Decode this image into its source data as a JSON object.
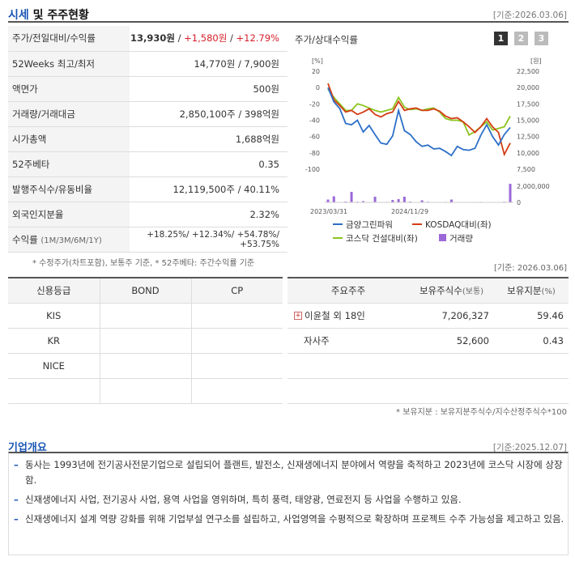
{
  "section1": {
    "title_a": "시세",
    "title_b": " 및 주주현황",
    "date": "[기준:2026.03.06]"
  },
  "quote": {
    "rows": [
      {
        "label": "주가/전일대비/수익률",
        "price": "13,930원",
        "sep1": " / ",
        "change": "+1,580원",
        "sep2": " / ",
        "rate": "+12.79%"
      },
      {
        "label": "52Weeks 최고/최저",
        "value": "14,770원 / 7,900원"
      },
      {
        "label": "액면가",
        "value": "500원"
      },
      {
        "label": "거래량/거래대금",
        "value": "2,850,100주 / 398억원"
      },
      {
        "label": "시가총액",
        "value": "1,688억원"
      },
      {
        "label": "52주베타",
        "value": "0.35"
      },
      {
        "label": "발행주식수/유동비율",
        "value": "12,119,500주 / 40.11%"
      },
      {
        "label": "외국인지분율",
        "value": "2.32%"
      },
      {
        "label": "수익률",
        "sublabel": "(1M/3M/6M/1Y)",
        "value": "+18.25%/ +12.34%/ +54.78%/ +53.75%"
      }
    ],
    "note": "* 수정주가(차트포함), 보통주 기준, * 52주베타: 주간수익률 기준"
  },
  "chart": {
    "title": "주가/상대수익률",
    "pages": [
      "1",
      "2",
      "3"
    ],
    "left_unit": "[%]",
    "right_unit": "[원]",
    "left_ticks": [
      "20",
      "0",
      "-20",
      "-40",
      "-60",
      "-80",
      "-100"
    ],
    "right_ticks": [
      "22,500",
      "20,000",
      "17,500",
      "15,000",
      "12,500",
      "10,000",
      "7,500"
    ],
    "vol_ticks": [
      "2,000,000",
      "0"
    ],
    "x_labels": [
      "2023/03/31",
      "2024/11/29"
    ],
    "legend": [
      {
        "label": "금양그린파워",
        "color": "#2c6fc7",
        "kind": "line"
      },
      {
        "label": "KOSDAQ대비(좌)",
        "color": "#d43c14",
        "kind": "line"
      },
      {
        "label": "코스닥 건설대비(좌)",
        "color": "#8cc41e",
        "kind": "line"
      },
      {
        "label": "거래량",
        "color": "#9a68d8",
        "kind": "bar"
      }
    ]
  },
  "chart_data": {
    "type": "line",
    "title": "주가/상대수익률",
    "xlabel": "",
    "x_ticks": [
      "2023/03/31",
      "2024/11/29"
    ],
    "ylim_left": [
      -100,
      20
    ],
    "ylim_right": [
      7500,
      22500
    ],
    "series": [
      {
        "name": "금양그린파워",
        "axis": "right",
        "values": [
          20000,
          17800,
          16800,
          14500,
          14300,
          15000,
          13200,
          14200,
          12800,
          11500,
          11300,
          12600,
          16500,
          13400,
          12800,
          11700,
          11000,
          11200,
          10600,
          10700,
          10200,
          9600,
          11000,
          10500,
          10400,
          10700,
          12700,
          14300,
          12500,
          11200,
          12800,
          13900
        ]
      },
      {
        "name": "KOSDAQ대비(좌)",
        "axis": "left",
        "values": [
          5,
          -15,
          -22,
          -30,
          -28,
          -33,
          -30,
          -26,
          -33,
          -36,
          -32,
          -30,
          -17,
          -28,
          -26,
          -25,
          -28,
          -28,
          -26,
          -29,
          -35,
          -38,
          -37,
          -42,
          -48,
          -55,
          -48,
          -38,
          -48,
          -55,
          -82,
          -68
        ]
      },
      {
        "name": "코스닥 건설대비(좌)",
        "axis": "left",
        "values": [
          -2,
          -12,
          -20,
          -28,
          -28,
          -20,
          -22,
          -25,
          -28,
          -30,
          -28,
          -26,
          -12,
          -24,
          -27,
          -26,
          -28,
          -26,
          -25,
          -30,
          -38,
          -40,
          -40,
          -42,
          -58,
          -54,
          -48,
          -42,
          -52,
          -50,
          -48,
          -35
        ]
      }
    ],
    "volume": {
      "name": "거래량",
      "ylim": [
        0,
        2000000
      ],
      "values": [
        350000,
        750000,
        50000,
        100000,
        1300000,
        80000,
        150000,
        50000,
        700000,
        50000,
        60000,
        300000,
        400000,
        700000,
        100000,
        50000,
        250000,
        80000,
        50000,
        50000,
        60000,
        350000,
        50000,
        30000,
        40000,
        50000,
        60000,
        50000,
        50000,
        50000,
        80000,
        2300000
      ]
    }
  },
  "credit": {
    "headers": [
      "신용등급",
      "BOND",
      "CP"
    ],
    "rows": [
      [
        "KIS",
        "",
        ""
      ],
      [
        "KR",
        "",
        ""
      ],
      [
        "NICE",
        "",
        ""
      ],
      [
        "",
        "",
        ""
      ]
    ]
  },
  "holders": {
    "date": "[기준: 2026.03.06]",
    "headers": [
      "주요주주",
      "보유주식수",
      "(보통)",
      "보유지분",
      "(%)"
    ],
    "rows": [
      {
        "name": "이윤철 외 18인",
        "shares": "7,206,327",
        "pct": "59.46",
        "expand": "+"
      },
      {
        "name": "자사주",
        "shares": "52,600",
        "pct": "0.43"
      },
      {
        "name": "",
        "shares": "",
        "pct": ""
      },
      {
        "name": "",
        "shares": "",
        "pct": ""
      }
    ],
    "note": "* 보유지분 : 보유지분주식수/지수산정주식수*100"
  },
  "overview": {
    "title": "기업개요",
    "date": "[기준:2025.12.07]",
    "items": [
      "동사는 1993년에 전기공사전문기업으로 설립되어 플랜트, 발전소, 신재생에너지 분야에서 역량을 축적하고 2023년에 코스닥 시장에 상장함.",
      "신재생에너지 사업, 전기공사 사업, 용역 사업을 영위하며, 특히 풍력, 태양광, 연료전지 등 사업을 수행하고 있음.",
      "신재생에너지 설계 역량 강화를 위해 기업부설 연구소를 설립하고, 사업영역을 수평적으로 확장하며 프로젝트 수주 가능성을 제고하고 있음."
    ]
  }
}
